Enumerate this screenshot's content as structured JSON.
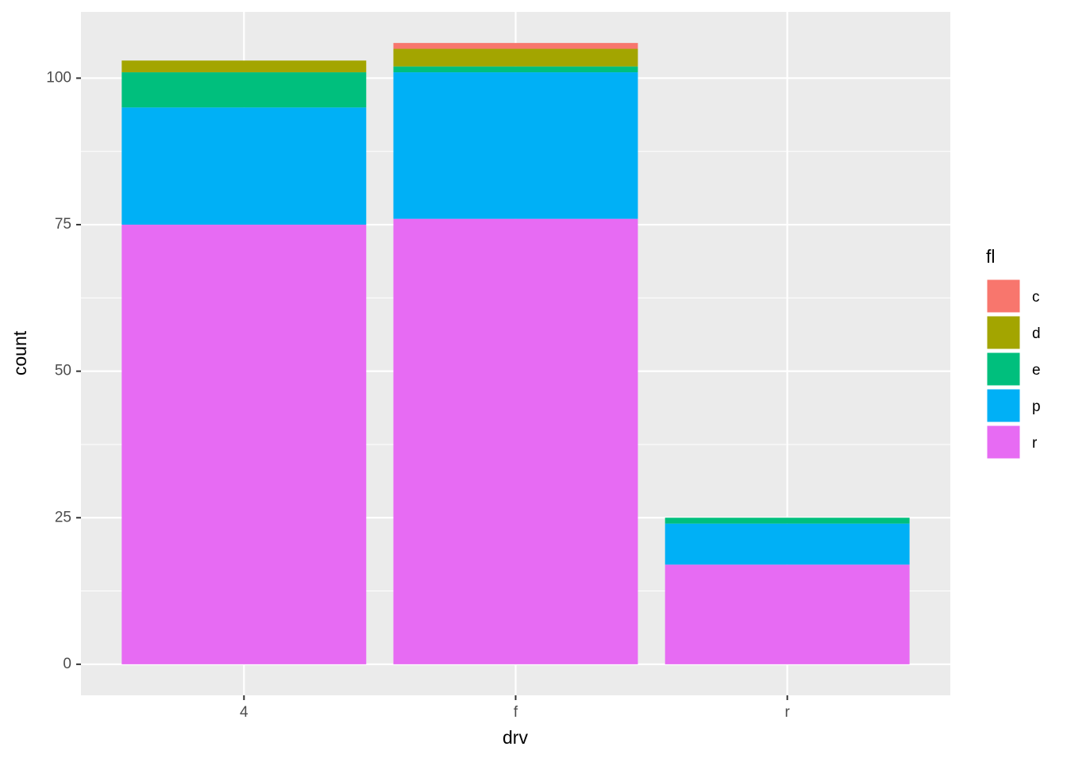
{
  "chart_data": {
    "type": "stacked-bar",
    "x_label": "drv",
    "y_label": "count",
    "legend_title": "fl",
    "categories": [
      "4",
      "f",
      "r"
    ],
    "series": [
      {
        "name": "c",
        "color": "#F8766D",
        "values": [
          0,
          1,
          0
        ]
      },
      {
        "name": "d",
        "color": "#A3A500",
        "values": [
          2,
          3,
          0
        ]
      },
      {
        "name": "e",
        "color": "#00BF7D",
        "values": [
          6,
          1,
          1
        ]
      },
      {
        "name": "p",
        "color": "#00B0F6",
        "values": [
          20,
          25,
          7
        ]
      },
      {
        "name": "r",
        "color": "#E76BF3",
        "values": [
          75,
          76,
          17
        ]
      }
    ],
    "ylim": [
      -5.3,
      111.3
    ],
    "yticks": [
      0,
      25,
      50,
      75,
      100
    ],
    "grid": true,
    "legend": "right"
  }
}
